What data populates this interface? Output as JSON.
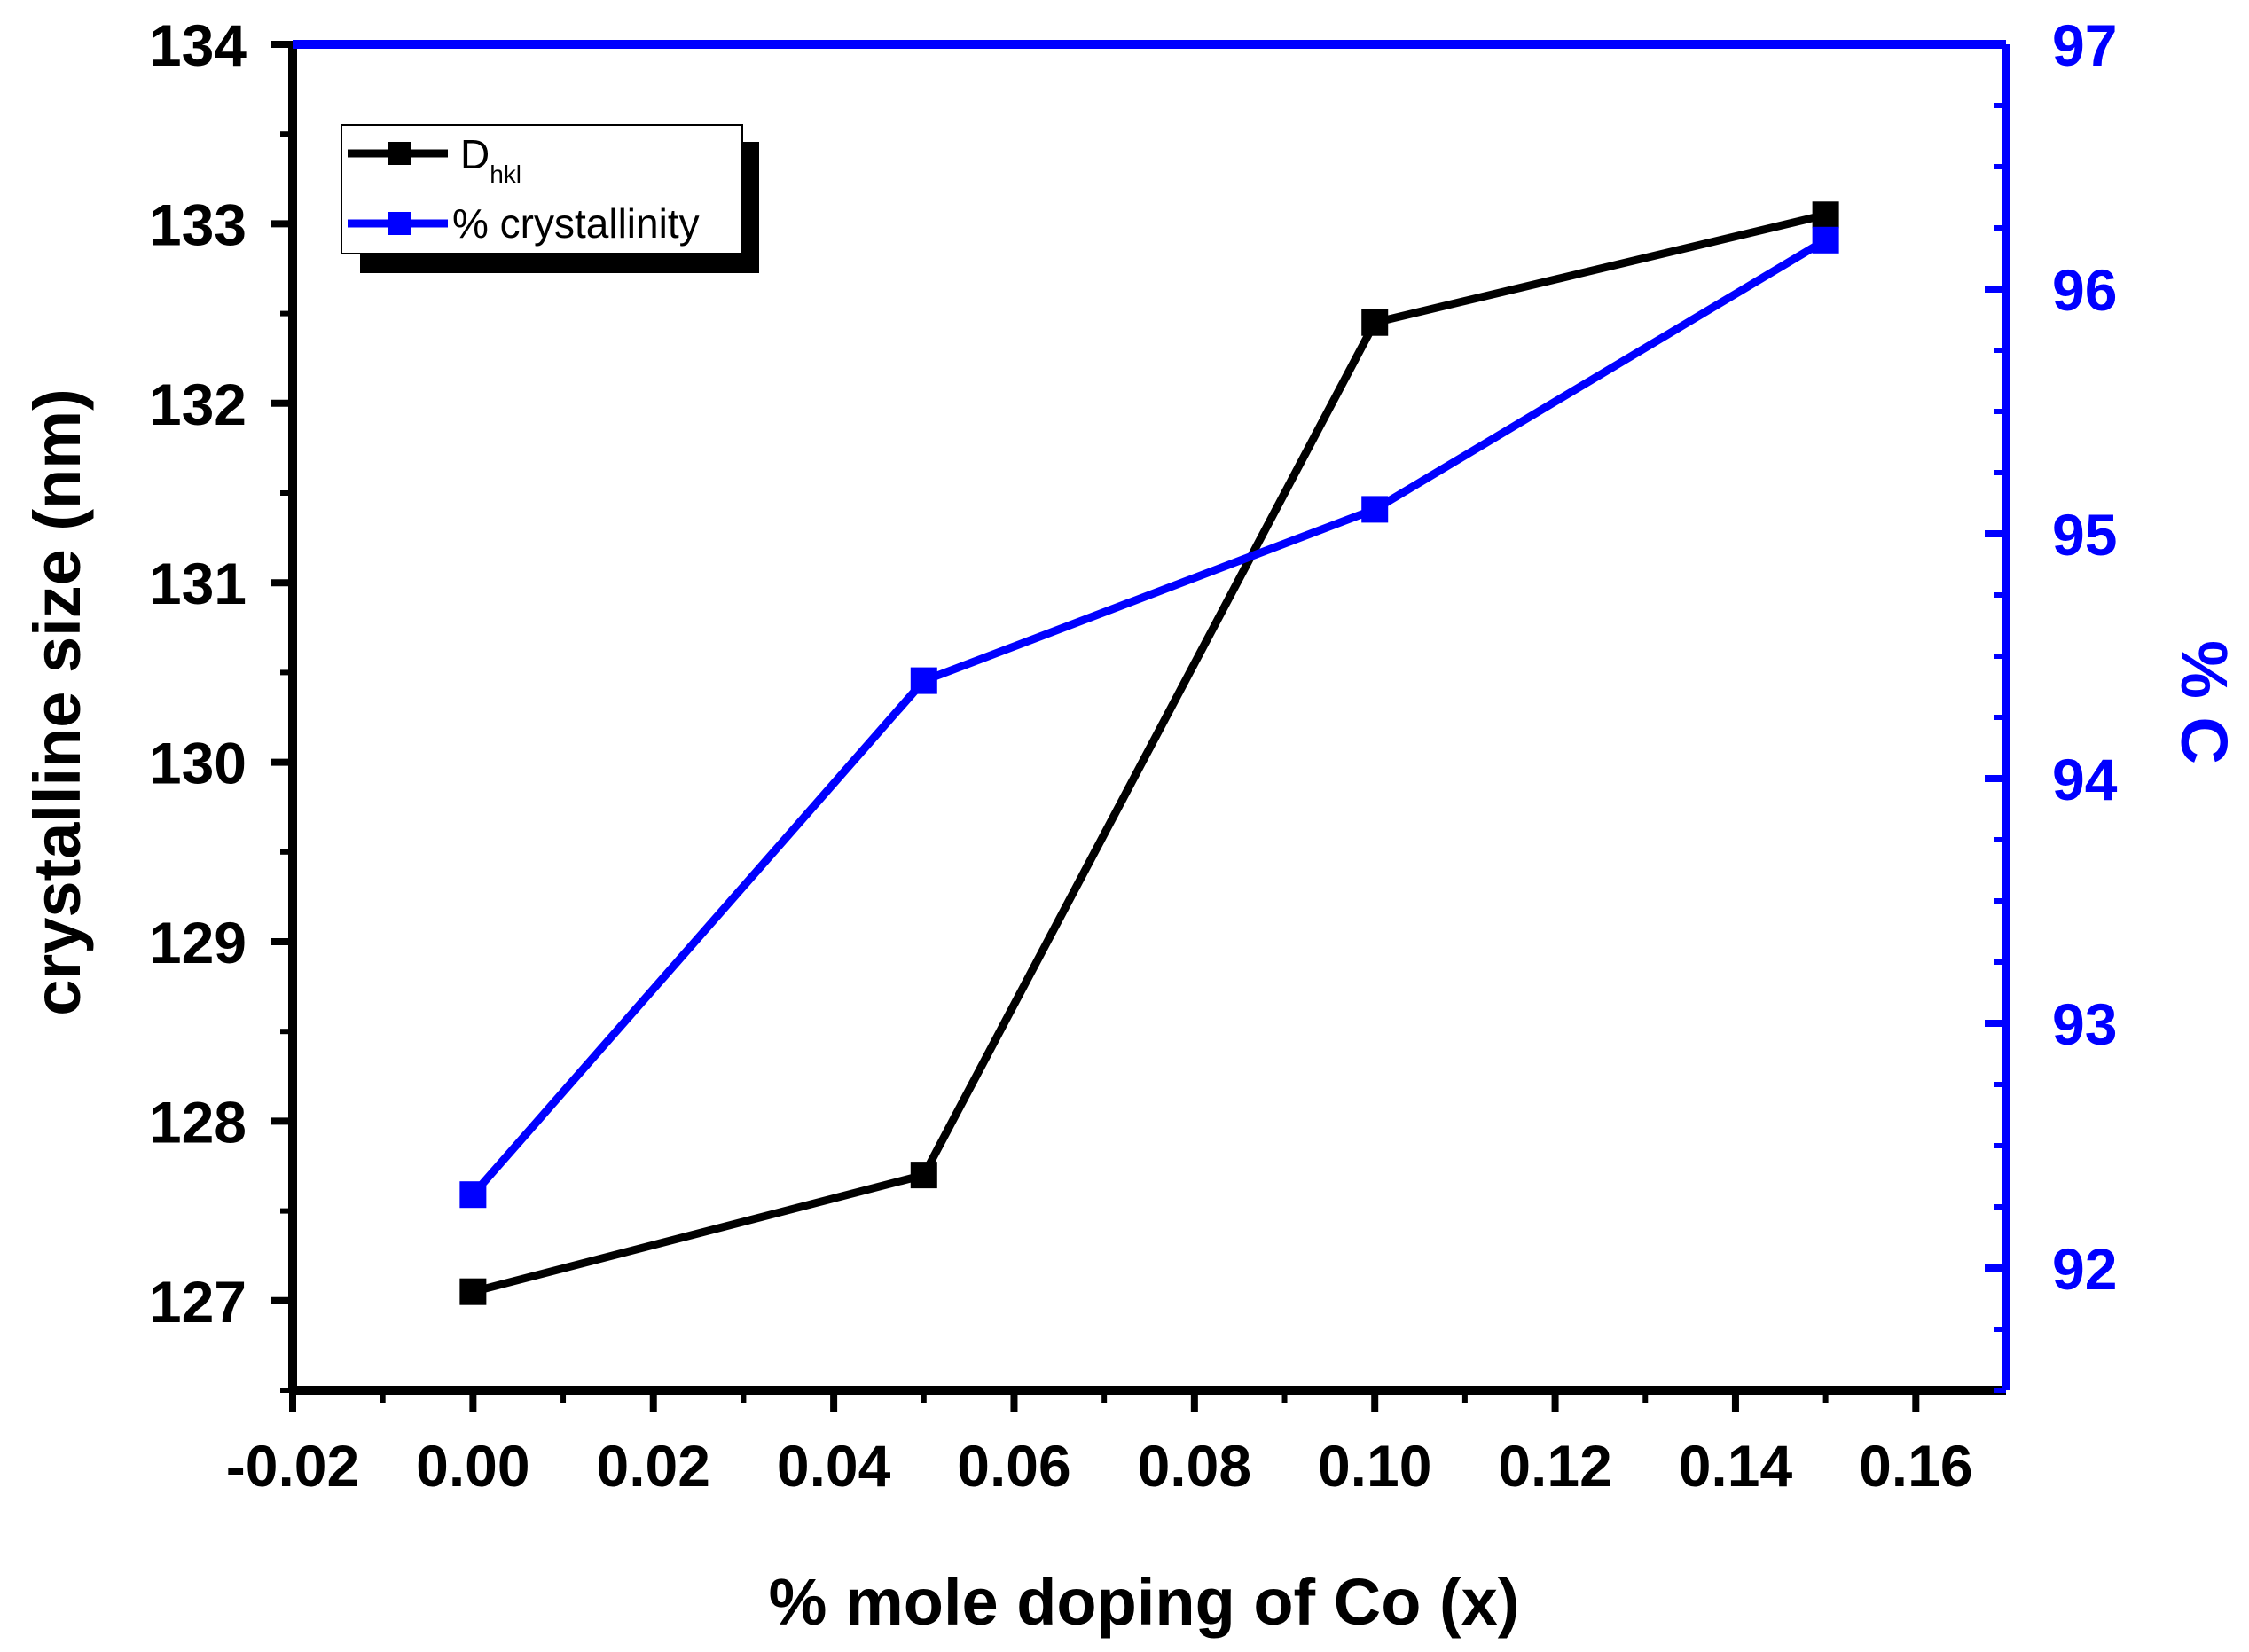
{
  "chart_data": {
    "type": "line",
    "xlabel": "% mole doping of Co (x)",
    "ylabel": "crystalline size (nm)",
    "y2label": "% C",
    "xlim": [
      -0.02,
      0.17
    ],
    "ylim": [
      126.5,
      134
    ],
    "y2lim": [
      91.5,
      97
    ],
    "xticks": [
      "-0.02",
      "0.00",
      "0.02",
      "0.04",
      "0.06",
      "0.08",
      "0.10",
      "0.12",
      "0.14",
      "0.16"
    ],
    "yticks": [
      "127",
      "128",
      "129",
      "130",
      "131",
      "132",
      "133",
      "134"
    ],
    "y2ticks": [
      "92",
      "93",
      "94",
      "95",
      "96",
      "97"
    ],
    "legend_position": "top-left",
    "grid": false,
    "series": [
      {
        "name": "D",
        "name_subscript": "hkl",
        "axis": "left",
        "color": "#000000",
        "marker": "square",
        "x": [
          0.0,
          0.05,
          0.1,
          0.15
        ],
        "y": [
          127.05,
          127.7,
          132.45,
          133.05
        ]
      },
      {
        "name": "% crystallinity",
        "axis": "right",
        "color": "#0000ff",
        "marker": "square",
        "x": [
          0.0,
          0.05,
          0.1,
          0.15
        ],
        "y": [
          92.3,
          94.4,
          95.1,
          96.2
        ]
      }
    ]
  }
}
